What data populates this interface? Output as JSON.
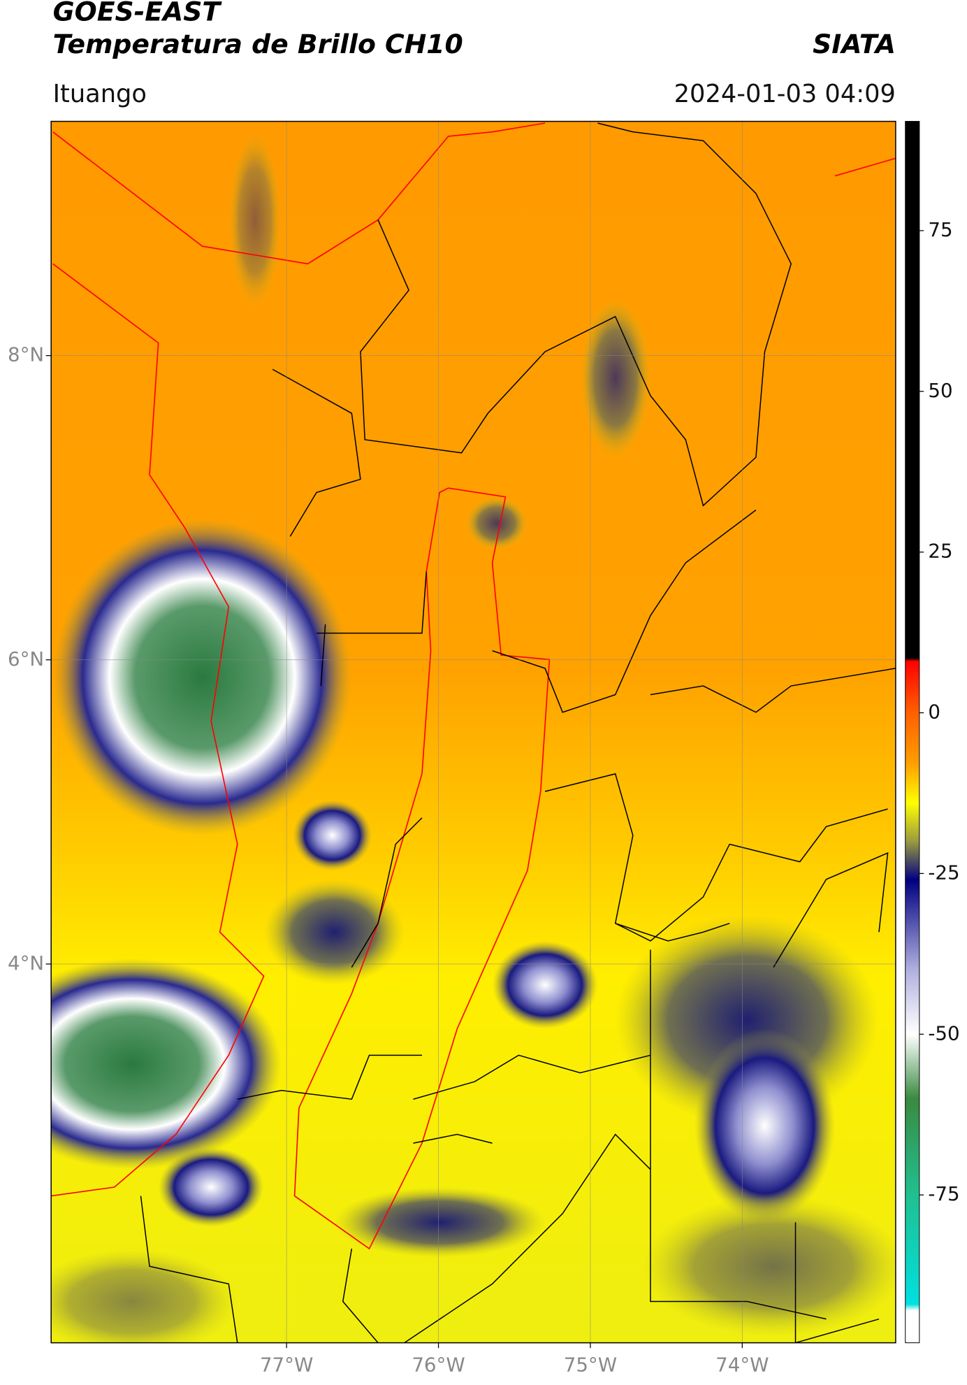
{
  "chart_data": {
    "type": "map",
    "title": "GOES-EAST",
    "subtitle": "Temperatura de Brillo CH10",
    "source": "SIATA",
    "location": "Ituango",
    "datetime": "2024-01-03 04:09",
    "xlim": [
      -78.55,
      -72.99
    ],
    "ylim": [
      1.51,
      9.54
    ],
    "xticks": [
      {
        "value": -77,
        "label": "77°W"
      },
      {
        "value": -76,
        "label": "76°W"
      },
      {
        "value": -75,
        "label": "75°W"
      },
      {
        "value": -74,
        "label": "74°W"
      }
    ],
    "yticks": [
      {
        "value": 8,
        "label": "8°N"
      },
      {
        "value": 6,
        "label": "6°N"
      },
      {
        "value": 4,
        "label": "4°N"
      }
    ],
    "grid": true,
    "colorbar": {
      "lim": [
        -98,
        92
      ],
      "ticks": [
        75,
        50,
        25,
        0,
        -25,
        -50,
        -75
      ],
      "colormap": [
        {
          "value": 92,
          "color": "#000000"
        },
        {
          "value": 8.5,
          "color": "#000000"
        },
        {
          "value": 8,
          "color": "#ff0000"
        },
        {
          "value": 0,
          "color": "#ff6000"
        },
        {
          "value": -8,
          "color": "#ffa000"
        },
        {
          "value": -14,
          "color": "#ffff00"
        },
        {
          "value": -20,
          "color": "#9a9a40"
        },
        {
          "value": -26,
          "color": "#000080"
        },
        {
          "value": -40,
          "color": "#b0b0e0"
        },
        {
          "value": -50,
          "color": "#ffffff"
        },
        {
          "value": -60,
          "color": "#3a8a40"
        },
        {
          "value": -75,
          "color": "#20c090"
        },
        {
          "value": -92,
          "color": "#00e0e0"
        },
        {
          "value": -93,
          "color": "#ffffff"
        },
        {
          "value": -98,
          "color": "#ffffff"
        }
      ]
    }
  }
}
